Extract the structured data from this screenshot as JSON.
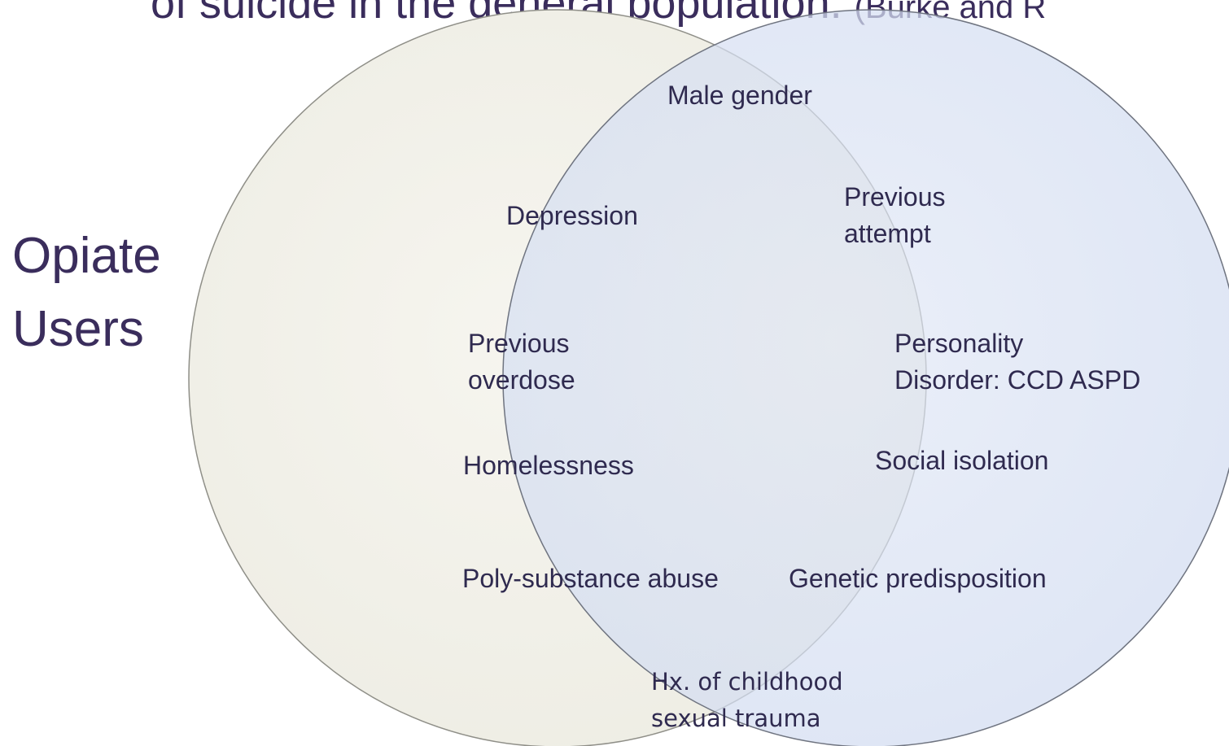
{
  "title": {
    "text": "of suicide in the general population.",
    "citation": "(Burke and R"
  },
  "set_label": [
    "Opiate",
    "Users"
  ],
  "items": [
    {
      "lines": [
        "Male gender"
      ]
    },
    {
      "lines": [
        "Depression"
      ]
    },
    {
      "lines": [
        "Previous",
        "attempt"
      ]
    },
    {
      "lines": [
        "Previous",
        "overdose"
      ]
    },
    {
      "lines": [
        "Personality",
        "Disorder: CCD ASPD"
      ]
    },
    {
      "lines": [
        "Homelessness"
      ]
    },
    {
      "lines": [
        "Social isolation"
      ]
    },
    {
      "lines": [
        "Poly-substance abuse"
      ]
    },
    {
      "lines": [
        "Genetic predisposition"
      ]
    },
    {
      "lines": [
        "Hx. of childhood",
        "sexual trauma"
      ]
    }
  ]
}
